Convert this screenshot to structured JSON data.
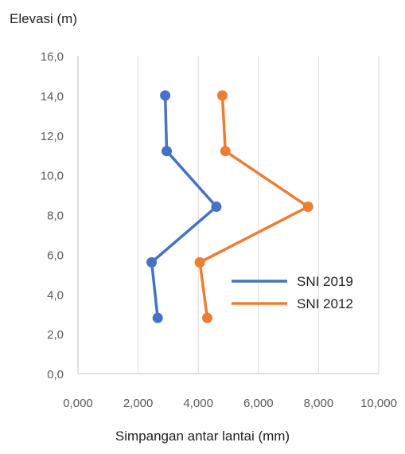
{
  "chart_data": {
    "type": "line",
    "title": "",
    "ylabel": "Elevasi (m)",
    "xlabel": "Simpangan antar lantai (mm)",
    "xlim": [
      0,
      10
    ],
    "ylim": [
      0,
      16
    ],
    "x_ticks": [
      "0,000",
      "2,000",
      "4,000",
      "6,000",
      "8,000",
      "10,000"
    ],
    "y_ticks": [
      "0,0",
      "2,0",
      "4,0",
      "6,0",
      "8,0",
      "10,0",
      "12,0",
      "14,0",
      "16,0"
    ],
    "grid": "vertical",
    "legend_position": "center-right",
    "series": [
      {
        "name": "SNI 2019",
        "color": "#4472C4",
        "points": [
          {
            "x": 2.65,
            "y": 2.8
          },
          {
            "x": 2.45,
            "y": 5.6
          },
          {
            "x": 4.6,
            "y": 8.4
          },
          {
            "x": 2.95,
            "y": 11.2
          },
          {
            "x": 2.9,
            "y": 14.0
          }
        ]
      },
      {
        "name": "SNI 2012",
        "color": "#ED7D31",
        "points": [
          {
            "x": 4.3,
            "y": 2.8
          },
          {
            "x": 4.05,
            "y": 5.6
          },
          {
            "x": 7.65,
            "y": 8.4
          },
          {
            "x": 4.9,
            "y": 11.2
          },
          {
            "x": 4.8,
            "y": 14.0
          }
        ]
      }
    ]
  }
}
